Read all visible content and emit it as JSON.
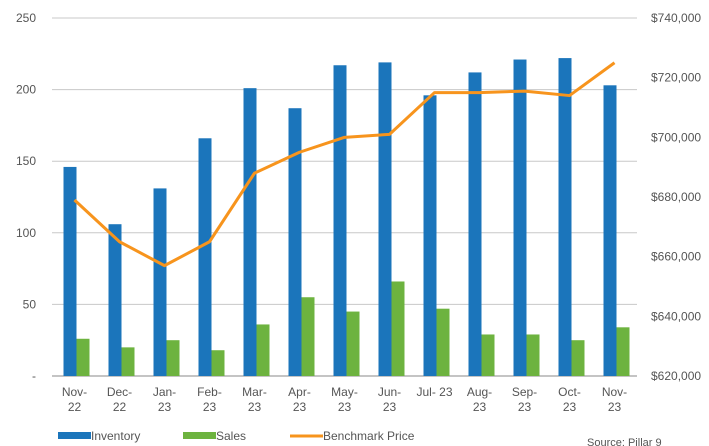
{
  "chart_data": {
    "type": "bar",
    "categories": [
      [
        "Nov-",
        "22"
      ],
      [
        "Dec-",
        "22"
      ],
      [
        "Jan-",
        "23"
      ],
      [
        "Feb-",
        "23"
      ],
      [
        "Mar-",
        "23"
      ],
      [
        "Apr-",
        "23"
      ],
      [
        "May-",
        "23"
      ],
      [
        "Jun-",
        "23"
      ],
      [
        "Jul-  23"
      ],
      [
        "Aug-",
        "23"
      ],
      [
        "Sep-",
        "23"
      ],
      [
        "Oct-",
        "23"
      ],
      [
        "Nov-",
        "23"
      ]
    ],
    "series": [
      {
        "name": "Inventory",
        "type": "bar",
        "axis": "left",
        "color": "#1b75bb",
        "values": [
          146,
          106,
          131,
          166,
          201,
          187,
          217,
          219,
          196,
          212,
          221,
          222,
          203
        ]
      },
      {
        "name": "Sales",
        "type": "bar",
        "axis": "left",
        "color": "#6db33f",
        "values": [
          26,
          20,
          25,
          18,
          36,
          55,
          45,
          66,
          47,
          29,
          29,
          25,
          34
        ]
      },
      {
        "name": "Benchmark Price",
        "type": "line",
        "axis": "right",
        "color": "#f7941d",
        "values": [
          679000,
          665000,
          657000,
          665000,
          688000,
          695000,
          700000,
          701000,
          715000,
          715000,
          715500,
          714000,
          725000
        ]
      }
    ],
    "left_axis": {
      "ylim": [
        0,
        250
      ],
      "ticks": [
        0,
        50,
        100,
        150,
        200,
        250
      ],
      "tick_labels": [
        "-",
        "50",
        "100",
        "150",
        "200",
        "250"
      ]
    },
    "right_axis": {
      "ylim": [
        620000,
        740000
      ],
      "ticks": [
        620000,
        640000,
        660000,
        680000,
        700000,
        720000,
        740000
      ],
      "tick_labels": [
        "$620,000",
        "$640,000",
        "$660,000",
        "$680,000",
        "$700,000",
        "$720,000",
        "$740,000"
      ]
    },
    "grid": true,
    "legend_position": "bottom-left"
  },
  "source": "Source: Pillar 9"
}
